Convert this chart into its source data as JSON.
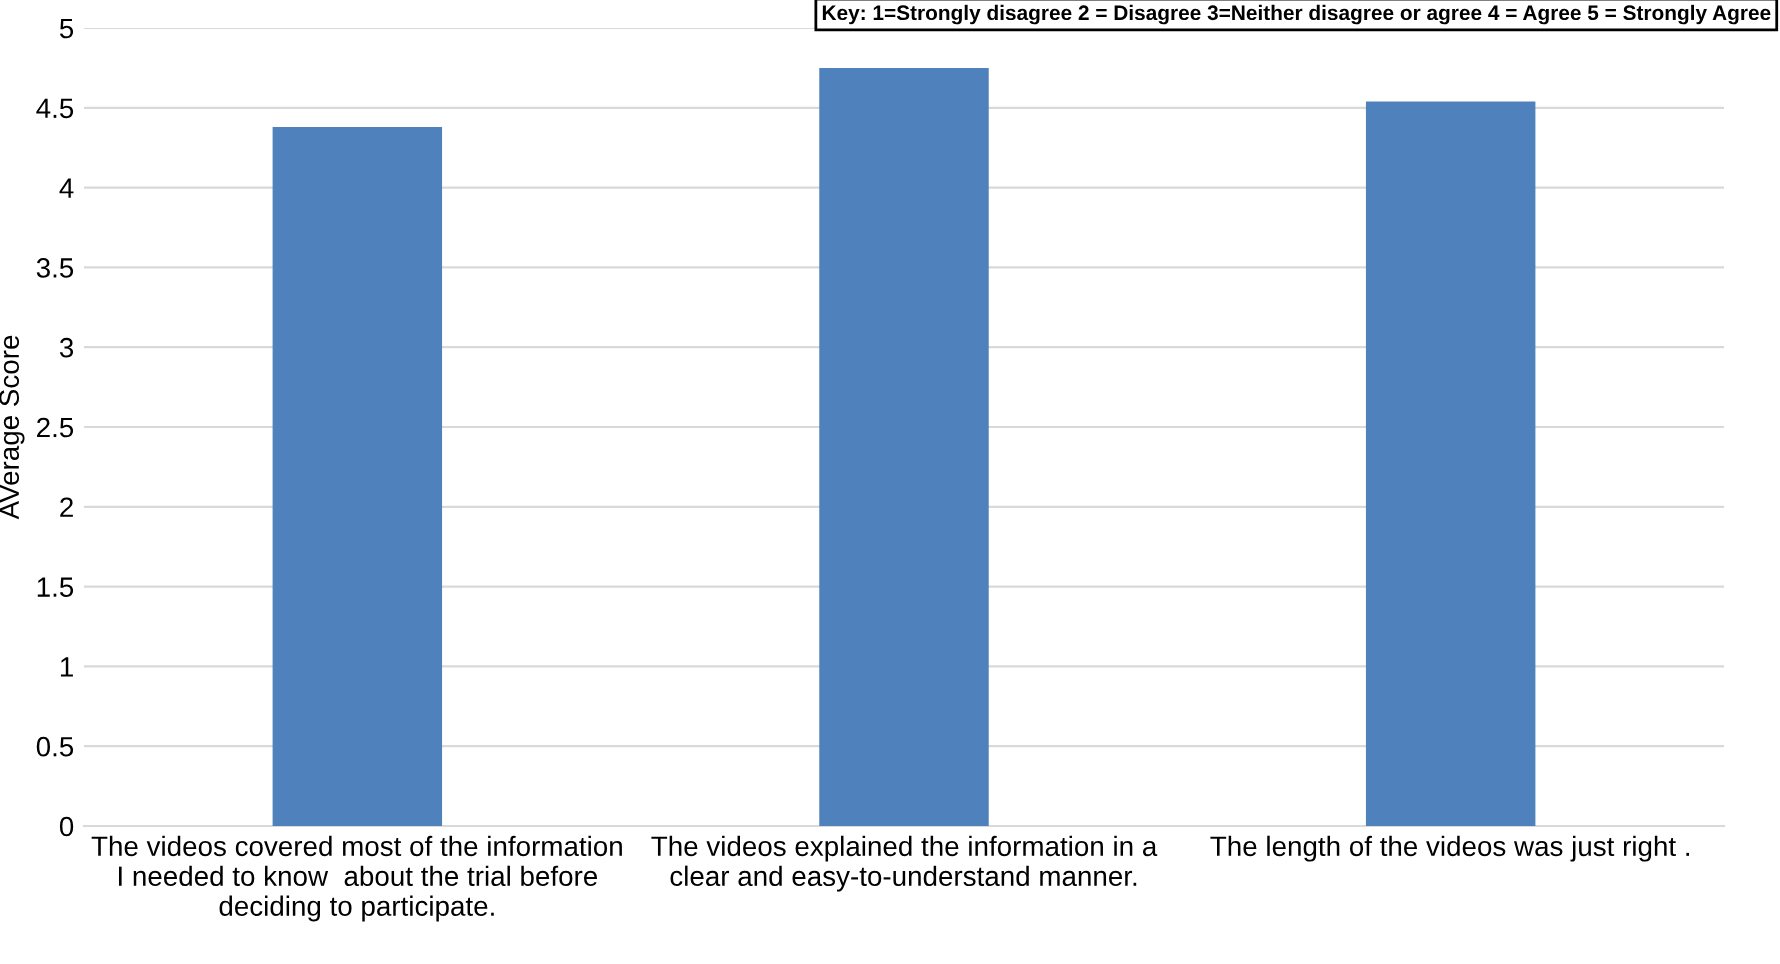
{
  "chart_data": {
    "type": "bar",
    "ylabel": "AVerage Score",
    "categories": [
      "The videos covered most of the information\nI needed to know  about the trial before\ndeciding to participate.",
      "The videos explained the information in a\nclear and easy-to-understand manner.",
      "The length of the videos was just right ."
    ],
    "values": [
      4.38,
      4.75,
      4.54
    ],
    "color": "#4f81bd",
    "ylim": [
      0,
      5
    ],
    "yticks": [
      0,
      0.5,
      1,
      1.5,
      2,
      2.5,
      3,
      3.5,
      4,
      4.5,
      5
    ],
    "grid": "y",
    "annotations": [
      "Key: 1=Strongly disagree 2 = Disagree 3=Neither disagree or agree 4 = Agree 5 = Strongly Agree"
    ]
  }
}
